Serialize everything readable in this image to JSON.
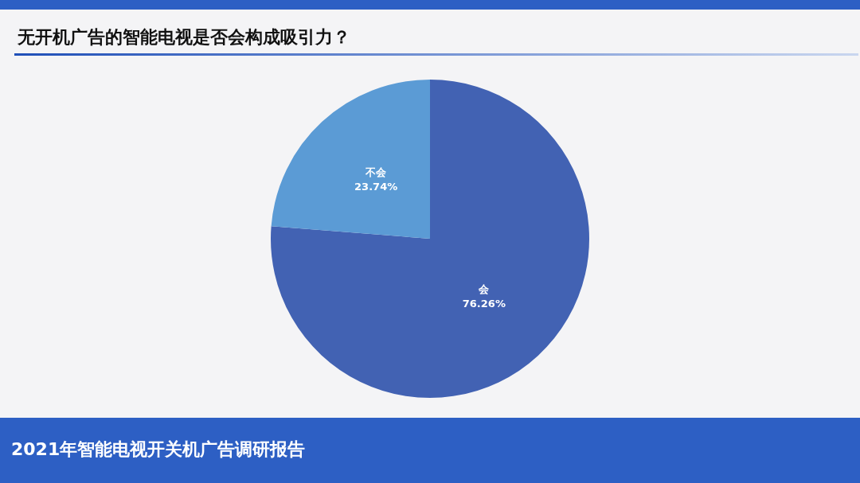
{
  "chart_data": {
    "type": "pie",
    "title": "无开机广告的智能电视是否会构成吸引力？",
    "categories": [
      "会",
      "不会"
    ],
    "values": [
      76.26,
      23.74
    ],
    "colors": [
      "#4262b3",
      "#5b9bd5"
    ],
    "value_labels": [
      "76.26%",
      "23.74%"
    ],
    "annotations": [
      "2021年智能电视开关机广告调研报告"
    ]
  }
}
